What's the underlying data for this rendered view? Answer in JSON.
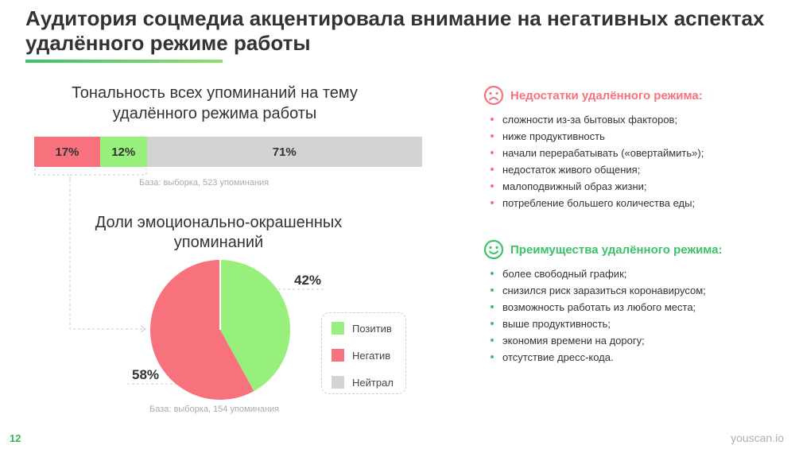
{
  "title": "Аудитория соцмедиа акцентировала внимание на негативных аспектах удалённого режиме работы",
  "colors": {
    "negative": "#f8727e",
    "positive": "#97ef7c",
    "neutral": "#d3d3d3",
    "accent_green": "#3cc26b",
    "text": "#333333"
  },
  "chart_data": [
    {
      "type": "bar",
      "orientation": "horizontal-stacked",
      "title": "Тональность всех упоминаний на тему удалённого режима работы",
      "categories": [
        "Негатив",
        "Позитив",
        "Нейтрал"
      ],
      "values": [
        17,
        12,
        71
      ],
      "labels": [
        "17%",
        "12%",
        "71%"
      ],
      "note": "База: выборка, 523 упоминания"
    },
    {
      "type": "pie",
      "title": "Доли эмоционально-окрашенных упоминаний",
      "categories": [
        "Позитив",
        "Негатив"
      ],
      "values": [
        42,
        58
      ],
      "labels": [
        "42%",
        "58%"
      ],
      "legend": [
        "Позитив",
        "Негатив",
        "Нейтрал"
      ],
      "legend_position": "right",
      "note": "База: выборка, 154 упоминания"
    }
  ],
  "negatives": {
    "heading": "Недостатки удалённого режима:",
    "icon": "sad-face-icon",
    "items": [
      "сложности из-за бытовых факторов;",
      "ниже продуктивность",
      "начали перерабатывать («овертаймить»);",
      "недостаток живого общения;",
      "малоподвижный образ жизни;",
      "потребление большего количества еды;"
    ]
  },
  "positives": {
    "heading": "Преимущества удалённого режима:",
    "icon": "happy-face-icon",
    "items": [
      "более свободный график;",
      "снизился риск заразиться коронавирусом;",
      "возможность работать из любого места;",
      "выше продуктивность;",
      "экономия времени на дорогу;",
      "отсутствие дресс-кода."
    ]
  },
  "footer": {
    "page_number": "12",
    "brand": "youscan.io"
  }
}
